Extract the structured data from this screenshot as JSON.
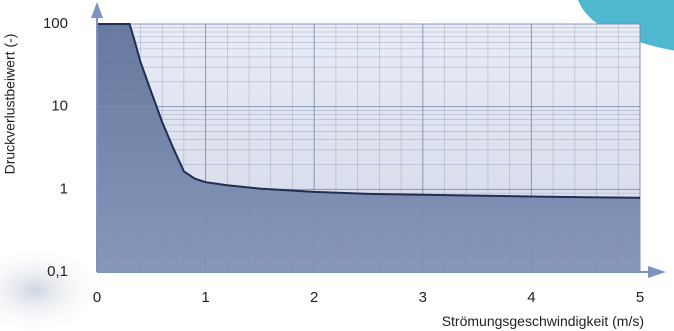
{
  "chart_data": {
    "type": "line",
    "xlabel": "Strömungsgeschwindigkeit (m/s)",
    "ylabel": "Druckverlustbeiwert (-)",
    "xlim": [
      0,
      5
    ],
    "ylim": [
      0.1,
      100
    ],
    "yscale": "log",
    "grid": true,
    "fill_below_curve": true,
    "x_ticks": [
      0,
      1,
      2,
      3,
      4,
      5
    ],
    "x_tick_labels": [
      "0",
      "1",
      "2",
      "3",
      "4",
      "5"
    ],
    "y_ticks": [
      0.1,
      1,
      10,
      100
    ],
    "y_tick_labels": [
      "0,1",
      "1",
      "10",
      "100"
    ],
    "series": [
      {
        "x": [
          0,
          0.3,
          0.35,
          0.4,
          0.5,
          0.6,
          0.7,
          0.8,
          0.9,
          1.0,
          1.2,
          1.5,
          2.0,
          2.5,
          3.0,
          3.5,
          4.0,
          4.5,
          5.0
        ],
        "y": [
          100,
          100,
          60,
          35,
          15,
          6.5,
          3.2,
          1.65,
          1.35,
          1.22,
          1.12,
          1.02,
          0.93,
          0.88,
          0.86,
          0.84,
          0.82,
          0.8,
          0.79
        ]
      }
    ],
    "colors": {
      "plot_bg": "#dfe3ef",
      "fill": "#6d7fa6",
      "line": "#1f2e52",
      "grid": "#7e8db0",
      "axis": "#7d93c2",
      "accent": "#4fb7cf"
    }
  }
}
